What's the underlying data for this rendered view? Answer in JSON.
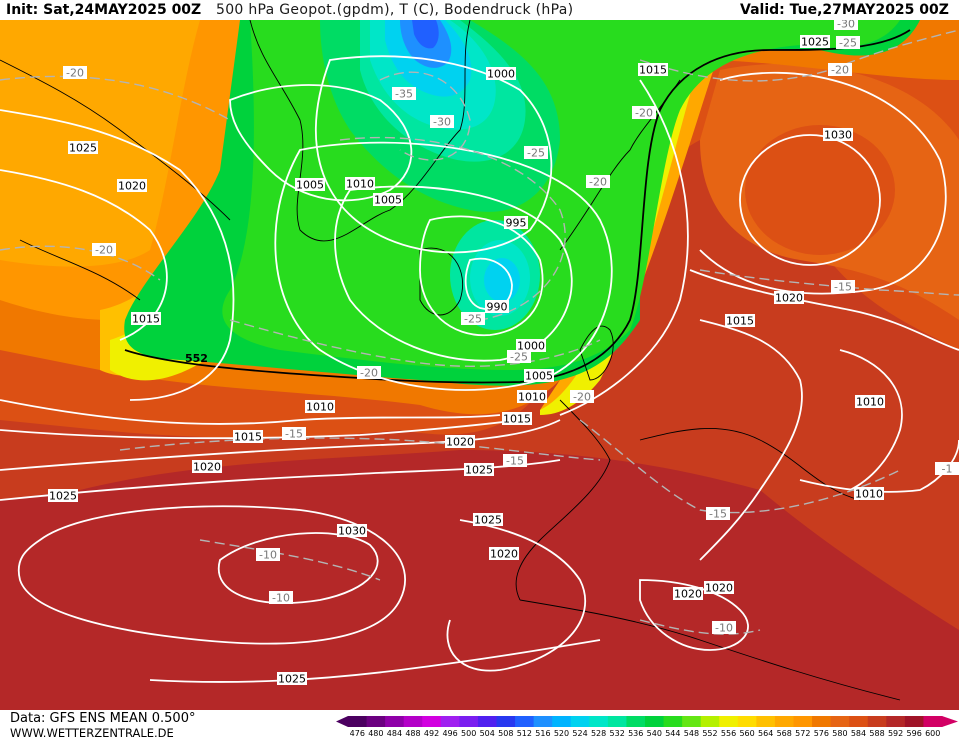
{
  "header": {
    "init": "Init: Sat,24MAY2025 00Z",
    "title": "500 hPa Geopot.(gpdm), T (C), Bodendruck (hPa)",
    "valid": "Valid: Tue,27MAY2025 00Z"
  },
  "footer": {
    "data": "Data: GFS ENS MEAN 0.500°",
    "url": "WWW.WETTERZENTRALE.DE"
  },
  "legend": {
    "values": [
      "476",
      "480",
      "484",
      "488",
      "492",
      "496",
      "500",
      "504",
      "508",
      "512",
      "516",
      "520",
      "524",
      "528",
      "532",
      "536",
      "540",
      "544",
      "548",
      "552",
      "556",
      "560",
      "564",
      "568",
      "572",
      "576",
      "580",
      "584",
      "588",
      "592",
      "596",
      "600"
    ],
    "colors": [
      "#4b0060",
      "#6b0080",
      "#8f00a8",
      "#b400c8",
      "#d200e0",
      "#a020f0",
      "#7a1ef0",
      "#5020f0",
      "#2838f0",
      "#2060ff",
      "#1e90ff",
      "#00b4ff",
      "#00d2f0",
      "#00e6c8",
      "#00e6a0",
      "#00dc64",
      "#00d23c",
      "#28dc1e",
      "#64e614",
      "#b4f000",
      "#f0f000",
      "#ffdc00",
      "#ffc000",
      "#ffa800",
      "#ff9600",
      "#f07800",
      "#e66414",
      "#dc5014",
      "#c83c1e",
      "#b42828",
      "#a01428",
      "#d20064"
    ]
  },
  "isobars": [
    {
      "id": "p1025-nw",
      "text": "1025"
    },
    {
      "id": "p1020-w",
      "text": "1020"
    },
    {
      "id": "p1015-w",
      "text": "1015"
    },
    {
      "id": "p1005-a",
      "text": "1005"
    },
    {
      "id": "p1010-a",
      "text": "1010"
    },
    {
      "id": "p1005-b",
      "text": "1005"
    },
    {
      "id": "p1000-n",
      "text": "1000"
    },
    {
      "id": "p995",
      "text": "995"
    },
    {
      "id": "p990",
      "text": "990"
    },
    {
      "id": "p1000-s",
      "text": "1000"
    },
    {
      "id": "p1005-s",
      "text": "1005"
    },
    {
      "id": "p1010-s",
      "text": "1010"
    },
    {
      "id": "p1015-s",
      "text": "1015"
    },
    {
      "id": "p1010-w",
      "text": "1010"
    },
    {
      "id": "p1015-mid",
      "text": "1015"
    },
    {
      "id": "p1020-mid",
      "text": "1020"
    },
    {
      "id": "p1020-sw",
      "text": "1020"
    },
    {
      "id": "p1025-mid",
      "text": "1025"
    },
    {
      "id": "p1025-sw",
      "text": "1025"
    },
    {
      "id": "p1030-sw",
      "text": "1030"
    },
    {
      "id": "p1025-az",
      "text": "1025"
    },
    {
      "id": "p1020-iber",
      "text": "1020"
    },
    {
      "id": "p1025-s",
      "text": "1025"
    },
    {
      "id": "p1020-med",
      "text": "1020"
    },
    {
      "id": "p1020-med2",
      "text": "1020"
    },
    {
      "id": "p1015-ne",
      "text": "1015"
    },
    {
      "id": "p1030-ne",
      "text": "1030"
    },
    {
      "id": "p1020-ne",
      "text": "1020"
    },
    {
      "id": "p1015-eu",
      "text": "1015"
    },
    {
      "id": "p1010-e",
      "text": "1010"
    },
    {
      "id": "p1010-se",
      "text": "1010"
    },
    {
      "id": "p1025-top",
      "text": "1025"
    }
  ],
  "temps": [
    {
      "id": "t-20-nw",
      "text": "-20"
    },
    {
      "id": "t-35",
      "text": "-35"
    },
    {
      "id": "t-30",
      "text": "-30"
    },
    {
      "id": "t-25-n",
      "text": "-25"
    },
    {
      "id": "t-20-w",
      "text": "-20"
    },
    {
      "id": "t-25-s",
      "text": "-25"
    },
    {
      "id": "t-25-s2",
      "text": "-25"
    },
    {
      "id": "t-20-mid",
      "text": "-20"
    },
    {
      "id": "t-20-nor",
      "text": "-20"
    },
    {
      "id": "t-20-nor2",
      "text": "-20"
    },
    {
      "id": "t-20-uk",
      "text": "-20"
    },
    {
      "id": "t-15-atl",
      "text": "-15"
    },
    {
      "id": "t-15-fr",
      "text": "-15"
    },
    {
      "id": "t-15-it",
      "text": "-15"
    },
    {
      "id": "t-10-az",
      "text": "-10"
    },
    {
      "id": "t-10-az2",
      "text": "-10"
    },
    {
      "id": "t-10-afr",
      "text": "-10"
    },
    {
      "id": "t-30-ne",
      "text": "-30"
    },
    {
      "id": "t-25-ne",
      "text": "-25"
    },
    {
      "id": "t-20-ne",
      "text": "-20"
    },
    {
      "id": "t-15-ru",
      "text": "-15"
    },
    {
      "id": "t-1-edge",
      "text": "-1"
    }
  ],
  "contour552": "552"
}
